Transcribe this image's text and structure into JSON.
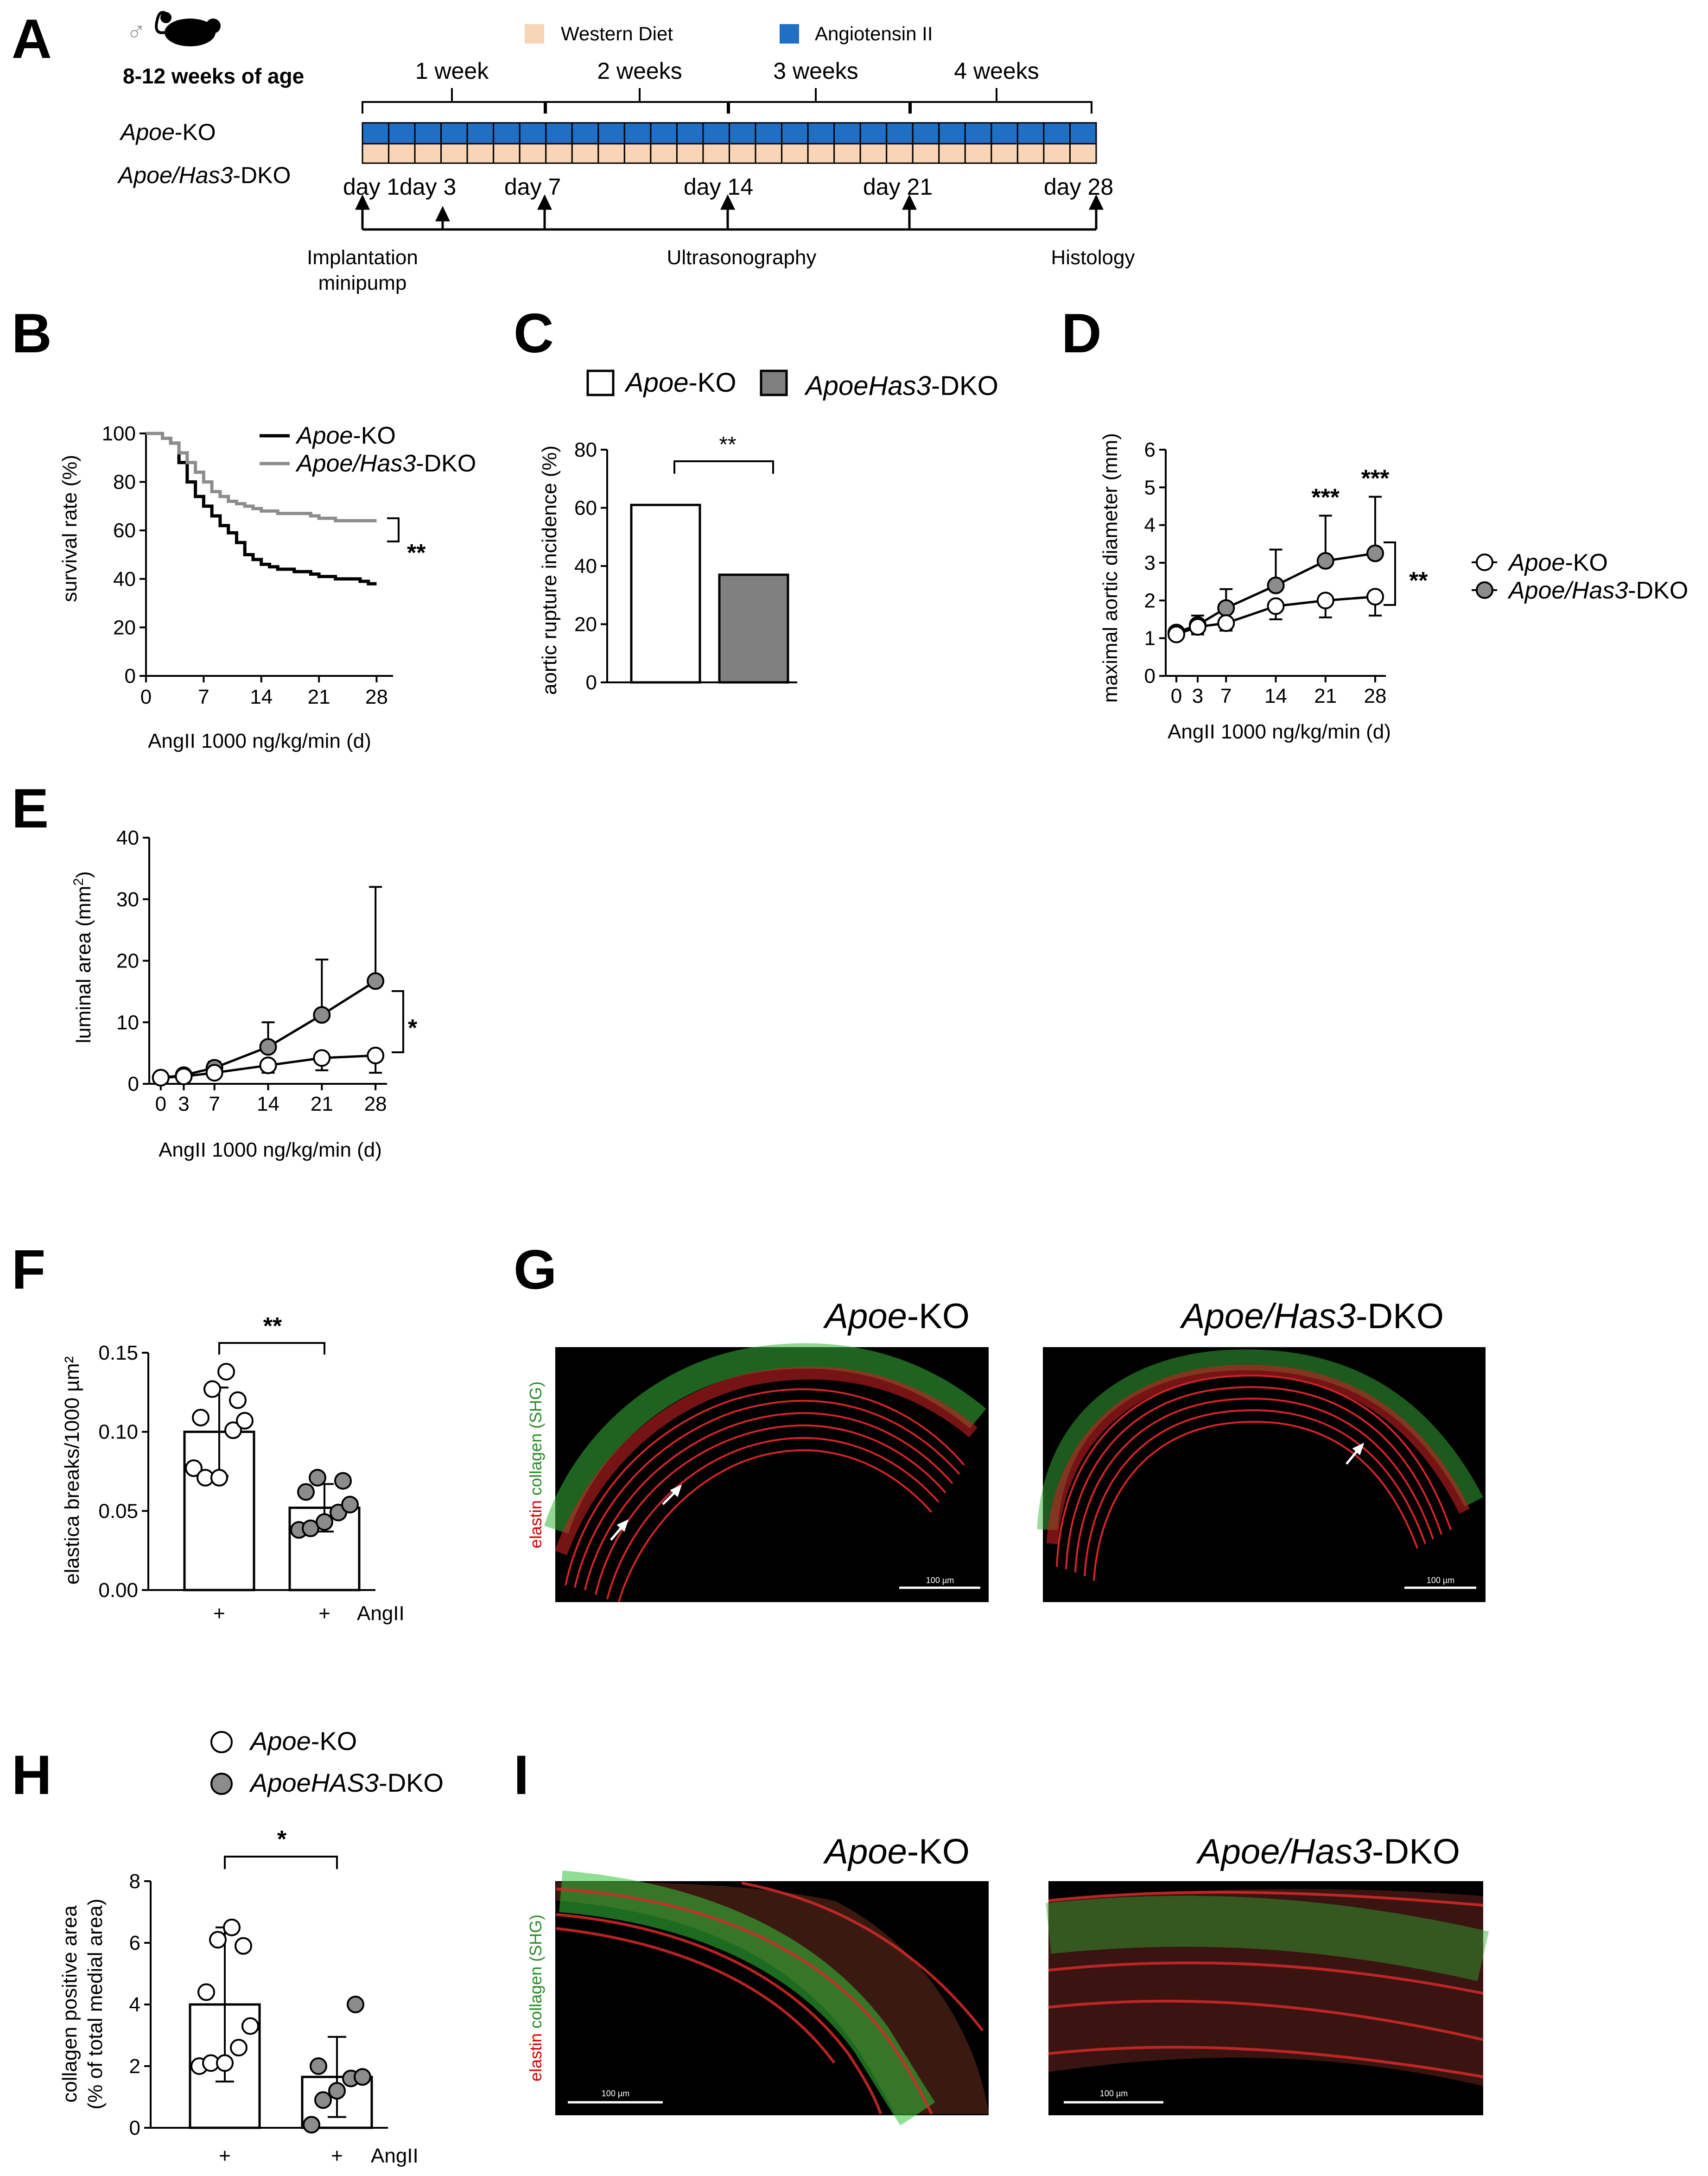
{
  "panels": {
    "A": {
      "letter": "A",
      "sex_symbol": "♂",
      "age": "8-12 weeks of age",
      "legend_wd": "Western Diet",
      "legend_ang": "Angiotensin II",
      "colors": {
        "western_diet": "#F8D5B6",
        "angiotensin": "#1F6FC4"
      },
      "weeks": [
        "1 week",
        "2 weeks",
        "3 weeks",
        "4 weeks"
      ],
      "group1_pre": "Apoe",
      "group1_post": "-KO",
      "group2_pre": "Apoe/Has3",
      "group2_post": "-DKO",
      "days": [
        "day 1",
        "day 3",
        "day 7",
        "day 14",
        "day 21",
        "day 28"
      ],
      "timeline_implant_1": "Implantation",
      "timeline_implant_2": "minipump",
      "timeline_ultra": "Ultrasonography",
      "timeline_histo": "Histology"
    },
    "B": {
      "letter": "B"
    },
    "C": {
      "letter": "C"
    },
    "D": {
      "letter": "D"
    },
    "E": {
      "letter": "E"
    },
    "F": {
      "letter": "F"
    },
    "G": {
      "letter": "G",
      "title1_pre": "Apoe",
      "title1_post": "-KO",
      "title2_pre": "Apoe/Has3",
      "title2_post": "-DKO",
      "side_red": "elastin",
      "side_green": "collagen (SHG)",
      "scalebar": "100 µm"
    },
    "H": {
      "letter": "H"
    },
    "I": {
      "letter": "I",
      "title1_pre": "Apoe",
      "title1_post": "-KO",
      "title2_pre": "Apoe/Has3",
      "title2_post": "-DKO",
      "side_red": "elastin",
      "side_green": "collagen (SHG)",
      "scalebar": "100 µm"
    }
  },
  "chart_data": [
    {
      "panel": "B",
      "type": "line",
      "xlabel": "AngII 1000 ng/kg/min (d)",
      "ylabel": "survival rate (%)",
      "xlim": [
        0,
        30
      ],
      "ylim": [
        0,
        100
      ],
      "xticks": [
        0,
        7,
        14,
        21,
        28
      ],
      "yticks": [
        0,
        20,
        40,
        60,
        80,
        100
      ],
      "legend_position": "top-right",
      "significance": "**",
      "series": [
        {
          "name_pre": "Apoe",
          "name_post": "-KO",
          "color": "#000000",
          "x": [
            0,
            2,
            3,
            4,
            5,
            6,
            7,
            8,
            9,
            10,
            11,
            12,
            13,
            14,
            15,
            16,
            17,
            18,
            19,
            20,
            21,
            22,
            23,
            24,
            25,
            26,
            27,
            28
          ],
          "y": [
            100,
            98,
            96,
            88,
            80,
            74,
            70,
            66,
            62,
            59,
            55,
            50,
            48,
            46,
            45,
            44,
            44,
            43,
            43,
            42,
            41,
            41,
            40,
            40,
            40,
            39,
            38,
            38
          ]
        },
        {
          "name_pre": "Apoe/Has3",
          "name_post": "-DKO",
          "color": "#8C8C8C",
          "x": [
            0,
            2,
            3,
            4,
            5,
            6,
            7,
            8,
            9,
            10,
            11,
            12,
            13,
            14,
            16,
            18,
            20,
            21,
            22,
            23,
            25,
            26,
            28
          ],
          "y": [
            100,
            98,
            96,
            92,
            88,
            84,
            80,
            76,
            74,
            72,
            71,
            70,
            69,
            68,
            67,
            67,
            66,
            65,
            65,
            64,
            64,
            64,
            64
          ]
        }
      ]
    },
    {
      "panel": "C",
      "type": "bar",
      "ylabel": "aortic rupture incidence (%)",
      "ylim": [
        0,
        80
      ],
      "yticks": [
        0,
        20,
        40,
        60,
        80
      ],
      "significance": "**",
      "series": [
        {
          "name_pre": "Apoe",
          "name_post": "-KO",
          "value": 61,
          "color": "#FFFFFF"
        },
        {
          "name_pre": "ApoeHas3",
          "name_post": "-DKO",
          "value": 37,
          "color": "#808080"
        }
      ]
    },
    {
      "panel": "D",
      "type": "line",
      "xlabel": "AngII 1000 ng/kg/min (d)",
      "ylabel": "maximal aortic diameter (mm)",
      "x": [
        0,
        3,
        7,
        14,
        21,
        28
      ],
      "xlim": [
        -1.5,
        29.5
      ],
      "ylim": [
        0,
        6
      ],
      "yticks": [
        0,
        1,
        2,
        3,
        4,
        5,
        6
      ],
      "significance": "**",
      "point_significance": [
        "",
        "",
        "",
        "",
        "***",
        "***"
      ],
      "legend_position": "right",
      "series": [
        {
          "name_pre": "Apoe",
          "name_post": "-KO",
          "fill": "#FFFFFF",
          "values": [
            1.1,
            1.3,
            1.4,
            1.85,
            2.0,
            2.1
          ],
          "err": [
            0.1,
            0.2,
            0.2,
            0.35,
            0.45,
            0.5
          ]
        },
        {
          "name_pre": "Apoe/Has3",
          "name_post": "-DKO",
          "fill": "#8C8C8C",
          "values": [
            1.15,
            1.35,
            1.8,
            2.4,
            3.05,
            3.25
          ],
          "err": [
            0.1,
            0.25,
            0.5,
            0.95,
            1.2,
            1.5
          ]
        }
      ]
    },
    {
      "panel": "E",
      "type": "line",
      "xlabel": "AngII 1000 ng/kg/min (d)",
      "ylabel_main": "luminal area (mm",
      "ylabel_sup": "2",
      "ylabel_end": ")",
      "x": [
        0,
        3,
        7,
        14,
        21,
        28
      ],
      "xlim": [
        -1.5,
        29.5
      ],
      "ylim": [
        0,
        40
      ],
      "yticks": [
        0,
        10,
        20,
        30,
        40
      ],
      "significance": "*",
      "series": [
        {
          "name_pre": "Apoe",
          "name_post": "-KO",
          "fill": "#FFFFFF",
          "values": [
            1.0,
            1.2,
            1.8,
            3.0,
            4.2,
            4.6
          ],
          "err": [
            0.2,
            0.3,
            0.5,
            1.2,
            2.0,
            2.8
          ]
        },
        {
          "name_pre": "Apoe/Has3",
          "name_post": "-DKO",
          "fill": "#8C8C8C",
          "values": [
            1.0,
            1.4,
            2.6,
            6.0,
            11.2,
            16.7
          ],
          "err": [
            0.2,
            0.4,
            1.0,
            4.0,
            9.0,
            15.3
          ]
        }
      ]
    },
    {
      "panel": "F",
      "type": "bar",
      "ylabel": "elastica breaks/1000 µm²",
      "ylim": [
        0,
        0.15
      ],
      "yticks": [
        "0.00",
        "0.05",
        "0.10",
        "0.15"
      ],
      "ytick_values": [
        0,
        0.05,
        0.1,
        0.15
      ],
      "categories": [
        "+",
        "+"
      ],
      "treatment": "AngII",
      "significance": "**",
      "series": [
        {
          "group": "Apoe-KO",
          "mean": 0.1,
          "sd": 0.028,
          "fill": "#FFFFFF",
          "points": [
            0.077,
            0.071,
            0.071,
            0.101,
            0.107,
            0.109,
            0.12,
            0.127,
            0.138
          ]
        },
        {
          "group": "ApoeHAS3-DKO",
          "mean": 0.052,
          "sd": 0.015,
          "fill": "#8C8C8C",
          "points": [
            0.038,
            0.039,
            0.043,
            0.049,
            0.054,
            0.062,
            0.069,
            0.071
          ]
        }
      ]
    },
    {
      "panel": "H",
      "type": "bar",
      "ylabel_1": "collagen positive area",
      "ylabel_2": "(% of total medial area)",
      "ylim": [
        0,
        8
      ],
      "yticks": [
        0,
        2,
        4,
        6,
        8
      ],
      "categories": [
        "+",
        "+"
      ],
      "treatment": "AngII",
      "significance": "*",
      "legend": [
        {
          "name_pre": "Apoe",
          "name_post": "-KO",
          "fill": "#FFFFFF"
        },
        {
          "name_pre": "ApoeHAS3",
          "name_post": "-DKO",
          "fill": "#8C8C8C"
        }
      ],
      "series": [
        {
          "mean": 4.0,
          "sd": 2.5,
          "fill": "#FFFFFF",
          "points": [
            2.0,
            2.1,
            2.1,
            2.6,
            3.3,
            4.4,
            5.9,
            6.1,
            6.5
          ]
        },
        {
          "mean": 1.65,
          "sd": 1.3,
          "fill": "#8C8C8C",
          "points": [
            0.1,
            0.9,
            1.2,
            1.6,
            1.65,
            2.0,
            4.0
          ]
        }
      ]
    }
  ]
}
